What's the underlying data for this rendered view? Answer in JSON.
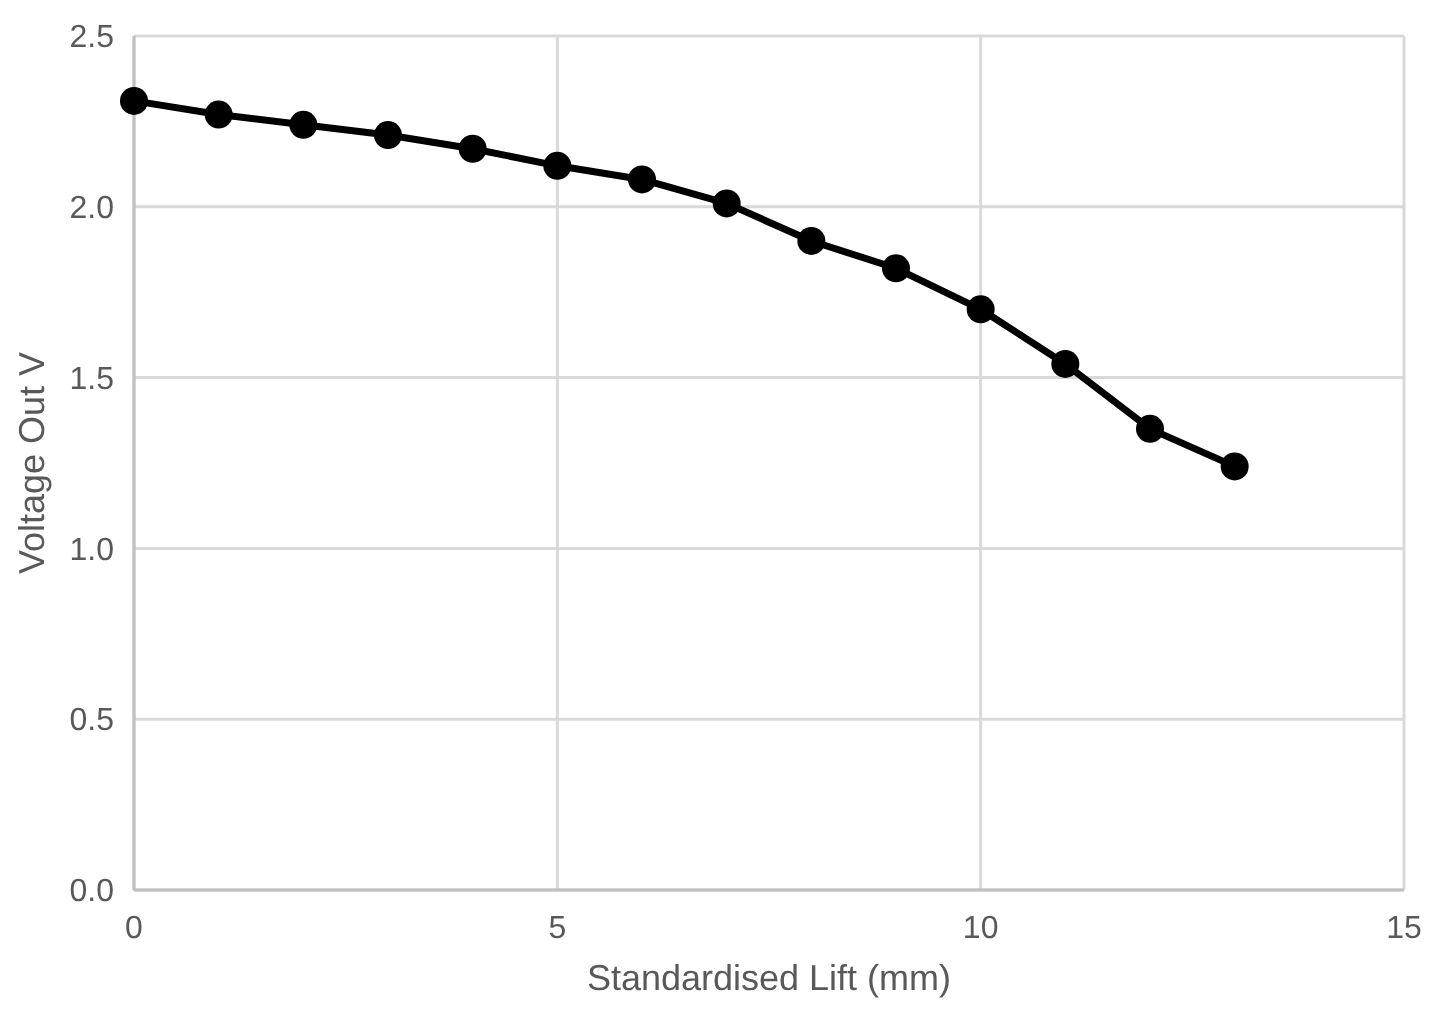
{
  "chart_data": {
    "type": "line",
    "xlabel": "Standardised Lift (mm)",
    "ylabel": "Voltage Out V",
    "x": [
      0,
      1,
      2,
      3,
      4,
      5,
      6,
      7,
      8,
      9,
      10,
      11,
      12,
      13
    ],
    "series": [
      {
        "color": "#000000",
        "values": [
          2.31,
          2.27,
          2.24,
          2.21,
          2.17,
          2.12,
          2.08,
          2.01,
          1.9,
          1.82,
          1.7,
          1.54,
          1.35,
          1.24
        ]
      }
    ],
    "xlim": [
      0,
      15
    ],
    "xticks": [
      0,
      5,
      10,
      15
    ],
    "ylim": [
      0,
      2.5
    ],
    "yticks": [
      {
        "value": 0,
        "label": "0.0"
      },
      {
        "value": 0.5,
        "label": "0.5"
      },
      {
        "value": 1,
        "label": "1.0"
      },
      {
        "value": 1.5,
        "label": "1.5"
      },
      {
        "value": 2,
        "label": "2.0"
      },
      {
        "value": 2.5,
        "label": "2.5"
      }
    ],
    "grid": true,
    "marker": "circle",
    "line_style": "solid"
  }
}
